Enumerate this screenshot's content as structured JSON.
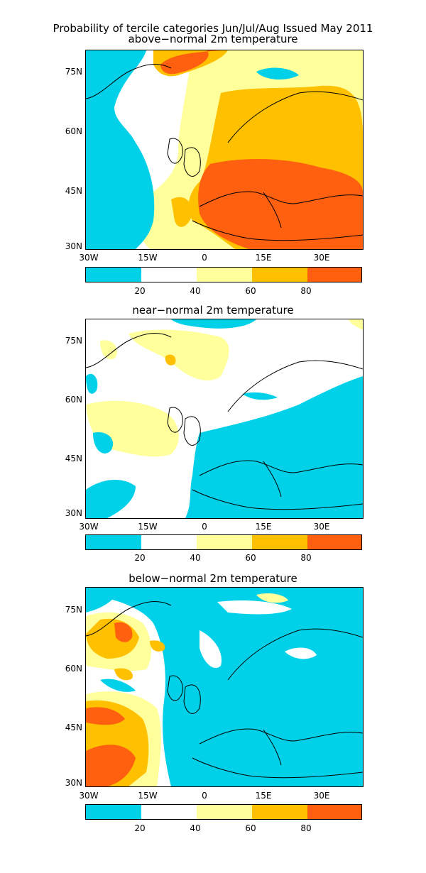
{
  "main_title": "Probability of tercile categories Jun/Jul/Aug Issued May 2011",
  "panels": [
    {
      "title": "above−normal 2m temperature"
    },
    {
      "title": "near−normal 2m temperature"
    },
    {
      "title": "below−normal 2m temperature"
    }
  ],
  "axes": {
    "lat_labels": [
      "75N",
      "60N",
      "45N",
      "30N"
    ],
    "lon_labels": [
      "30W",
      "15W",
      "0",
      "15E",
      "30E"
    ]
  },
  "colorbar": {
    "tick_labels": [
      "20",
      "40",
      "60",
      "80"
    ],
    "colors": [
      "#00d0e8",
      "#ffffff",
      "#ffff9c",
      "#ffc000",
      "#ff6010"
    ]
  }
}
